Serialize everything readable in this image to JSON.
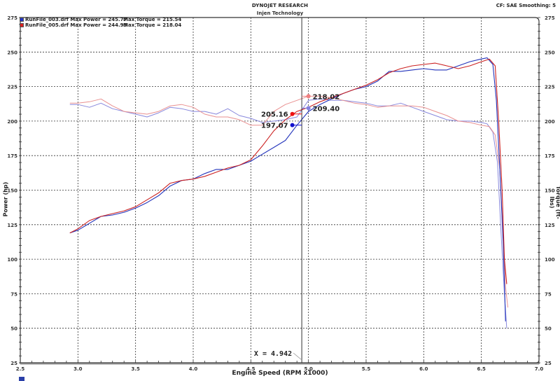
{
  "header": {
    "title": "DYNOJET RESEARCH",
    "subtitle": "Injen Technology",
    "settings": "CF: SAE  Smoothing: 5"
  },
  "legend": [
    {
      "file": "RunFile_003.drf Max Power = 245.77",
      "torque": "Max Torque = 215.54",
      "color": "#2233cc"
    },
    {
      "file": "RunFile_005.drf Max Power = 244.93",
      "torque": "Max Torque = 218.04",
      "color": "#dd2222"
    }
  ],
  "cursor": {
    "label": "X = 4.942",
    "x": 4.942
  },
  "markers": [
    {
      "label": "218.02",
      "x": 5.0,
      "y": 218.02,
      "color": "#f08080",
      "anchor_x": 4.942,
      "series": "RunFile_005 torque"
    },
    {
      "label": "209.40",
      "x": 5.0,
      "y": 209.4,
      "color": "#8080e0",
      "anchor_x": 4.942,
      "series": "RunFile_003 torque"
    },
    {
      "label": "205.16",
      "x": 4.86,
      "y": 205.16,
      "color": "#ee1111",
      "anchor_x": 4.942,
      "series": "RunFile_005 power"
    },
    {
      "label": "197.07",
      "x": 4.86,
      "y": 197.07,
      "color": "#1111cc",
      "anchor_x": 4.942,
      "series": "RunFile_003 power"
    }
  ],
  "chart_data": {
    "type": "line",
    "title": "DYNOJET RESEARCH",
    "subtitle": "Injen Technology",
    "xlabel": "Engine Speed (RPM x1000)",
    "ylabel": "Power (hp)",
    "y2label": "Torque (ft-lbs)",
    "xlim": [
      2.5,
      7.0
    ],
    "ylim": [
      25,
      275
    ],
    "y2lim": [
      25,
      275
    ],
    "x_ticks": [
      "2.5",
      "3.0",
      "3.5",
      "4.0",
      "4.5",
      "5.0",
      "5.5",
      "6.0",
      "6.5",
      "7.0"
    ],
    "y_ticks": [
      "25",
      "50",
      "75",
      "100",
      "125",
      "150",
      "175",
      "200",
      "225",
      "250",
      "275"
    ],
    "grid": true,
    "legend_position": "top-left",
    "series": [
      {
        "name": "RunFile_003.drf Power",
        "axis": "left",
        "color": "#2233bb",
        "width": 1.1,
        "x": [
          2.93,
          3.0,
          3.1,
          3.2,
          3.3,
          3.4,
          3.5,
          3.6,
          3.7,
          3.8,
          3.9,
          4.0,
          4.1,
          4.2,
          4.3,
          4.4,
          4.5,
          4.6,
          4.7,
          4.8,
          4.9,
          5.0,
          5.1,
          5.2,
          5.3,
          5.4,
          5.5,
          5.6,
          5.7,
          5.8,
          5.9,
          6.0,
          6.1,
          6.2,
          6.3,
          6.4,
          6.5,
          6.55,
          6.6,
          6.63,
          6.66,
          6.69,
          6.71
        ],
        "y": [
          119,
          121,
          126,
          131,
          132,
          134,
          137,
          141,
          146,
          153,
          157,
          158,
          162,
          165,
          165,
          168,
          171,
          176,
          181,
          186,
          197,
          207,
          212,
          216,
          220,
          223,
          225,
          229,
          236,
          236,
          237,
          238,
          237,
          237,
          240,
          243,
          245,
          245.8,
          241,
          215,
          165,
          110,
          55
        ]
      },
      {
        "name": "RunFile_005.drf Power",
        "axis": "left",
        "color": "#cc2222",
        "width": 1.1,
        "x": [
          2.93,
          3.0,
          3.1,
          3.2,
          3.3,
          3.4,
          3.5,
          3.6,
          3.7,
          3.8,
          3.9,
          4.0,
          4.1,
          4.2,
          4.3,
          4.4,
          4.5,
          4.6,
          4.7,
          4.8,
          4.9,
          5.0,
          5.1,
          5.2,
          5.3,
          5.4,
          5.5,
          5.6,
          5.7,
          5.8,
          5.9,
          6.0,
          6.1,
          6.2,
          6.3,
          6.4,
          6.5,
          6.57,
          6.62,
          6.65,
          6.68,
          6.7,
          6.72
        ],
        "y": [
          119,
          122,
          128,
          131,
          133,
          135,
          138,
          143,
          148,
          155,
          157,
          158,
          160,
          163,
          166,
          168,
          172,
          182,
          193,
          201,
          207,
          210,
          214,
          217,
          220,
          223,
          226,
          230,
          235,
          238,
          240,
          241,
          242,
          240,
          238,
          240,
          243,
          244.9,
          240,
          200,
          150,
          100,
          82
        ]
      },
      {
        "name": "RunFile_003.drf Torque",
        "axis": "right",
        "color": "#8888dd",
        "width": 1.0,
        "x": [
          2.93,
          3.0,
          3.1,
          3.2,
          3.3,
          3.4,
          3.5,
          3.6,
          3.7,
          3.8,
          3.9,
          4.0,
          4.1,
          4.2,
          4.3,
          4.4,
          4.5,
          4.6,
          4.7,
          4.8,
          4.9,
          5.0,
          5.1,
          5.2,
          5.3,
          5.4,
          5.5,
          5.6,
          5.7,
          5.8,
          5.9,
          6.0,
          6.1,
          6.2,
          6.3,
          6.4,
          6.5,
          6.55,
          6.6,
          6.64,
          6.67,
          6.7,
          6.72
        ],
        "y": [
          212,
          212,
          210,
          213,
          209,
          207,
          205,
          203,
          206,
          210,
          209,
          207,
          207,
          205,
          209,
          204,
          202,
          199,
          200,
          201,
          203,
          215,
          216,
          215,
          215,
          214,
          213,
          211,
          211,
          213,
          210,
          207,
          204,
          201,
          200,
          200,
          199,
          198,
          192,
          170,
          120,
          75,
          50
        ]
      },
      {
        "name": "RunFile_005.drf Torque",
        "axis": "right",
        "color": "#e99090",
        "width": 1.0,
        "x": [
          2.93,
          3.0,
          3.1,
          3.2,
          3.3,
          3.4,
          3.5,
          3.6,
          3.7,
          3.8,
          3.9,
          4.0,
          4.1,
          4.2,
          4.3,
          4.4,
          4.5,
          4.6,
          4.7,
          4.8,
          4.9,
          5.0,
          5.1,
          5.2,
          5.3,
          5.4,
          5.5,
          5.6,
          5.7,
          5.8,
          5.9,
          6.0,
          6.1,
          6.2,
          6.3,
          6.4,
          6.5,
          6.57,
          6.62,
          6.66,
          6.69,
          6.71,
          6.73
        ],
        "y": [
          213,
          213,
          214,
          216,
          211,
          207,
          206,
          205,
          207,
          211,
          212,
          210,
          205,
          203,
          203,
          201,
          197,
          197,
          207,
          212,
          215,
          218,
          218,
          217,
          215,
          213,
          212,
          210,
          211,
          211,
          211,
          210,
          207,
          204,
          200,
          199,
          197,
          196,
          190,
          165,
          115,
          80,
          65
        ]
      }
    ]
  },
  "footer": {
    "swatch_color": "#2a3fa8"
  }
}
